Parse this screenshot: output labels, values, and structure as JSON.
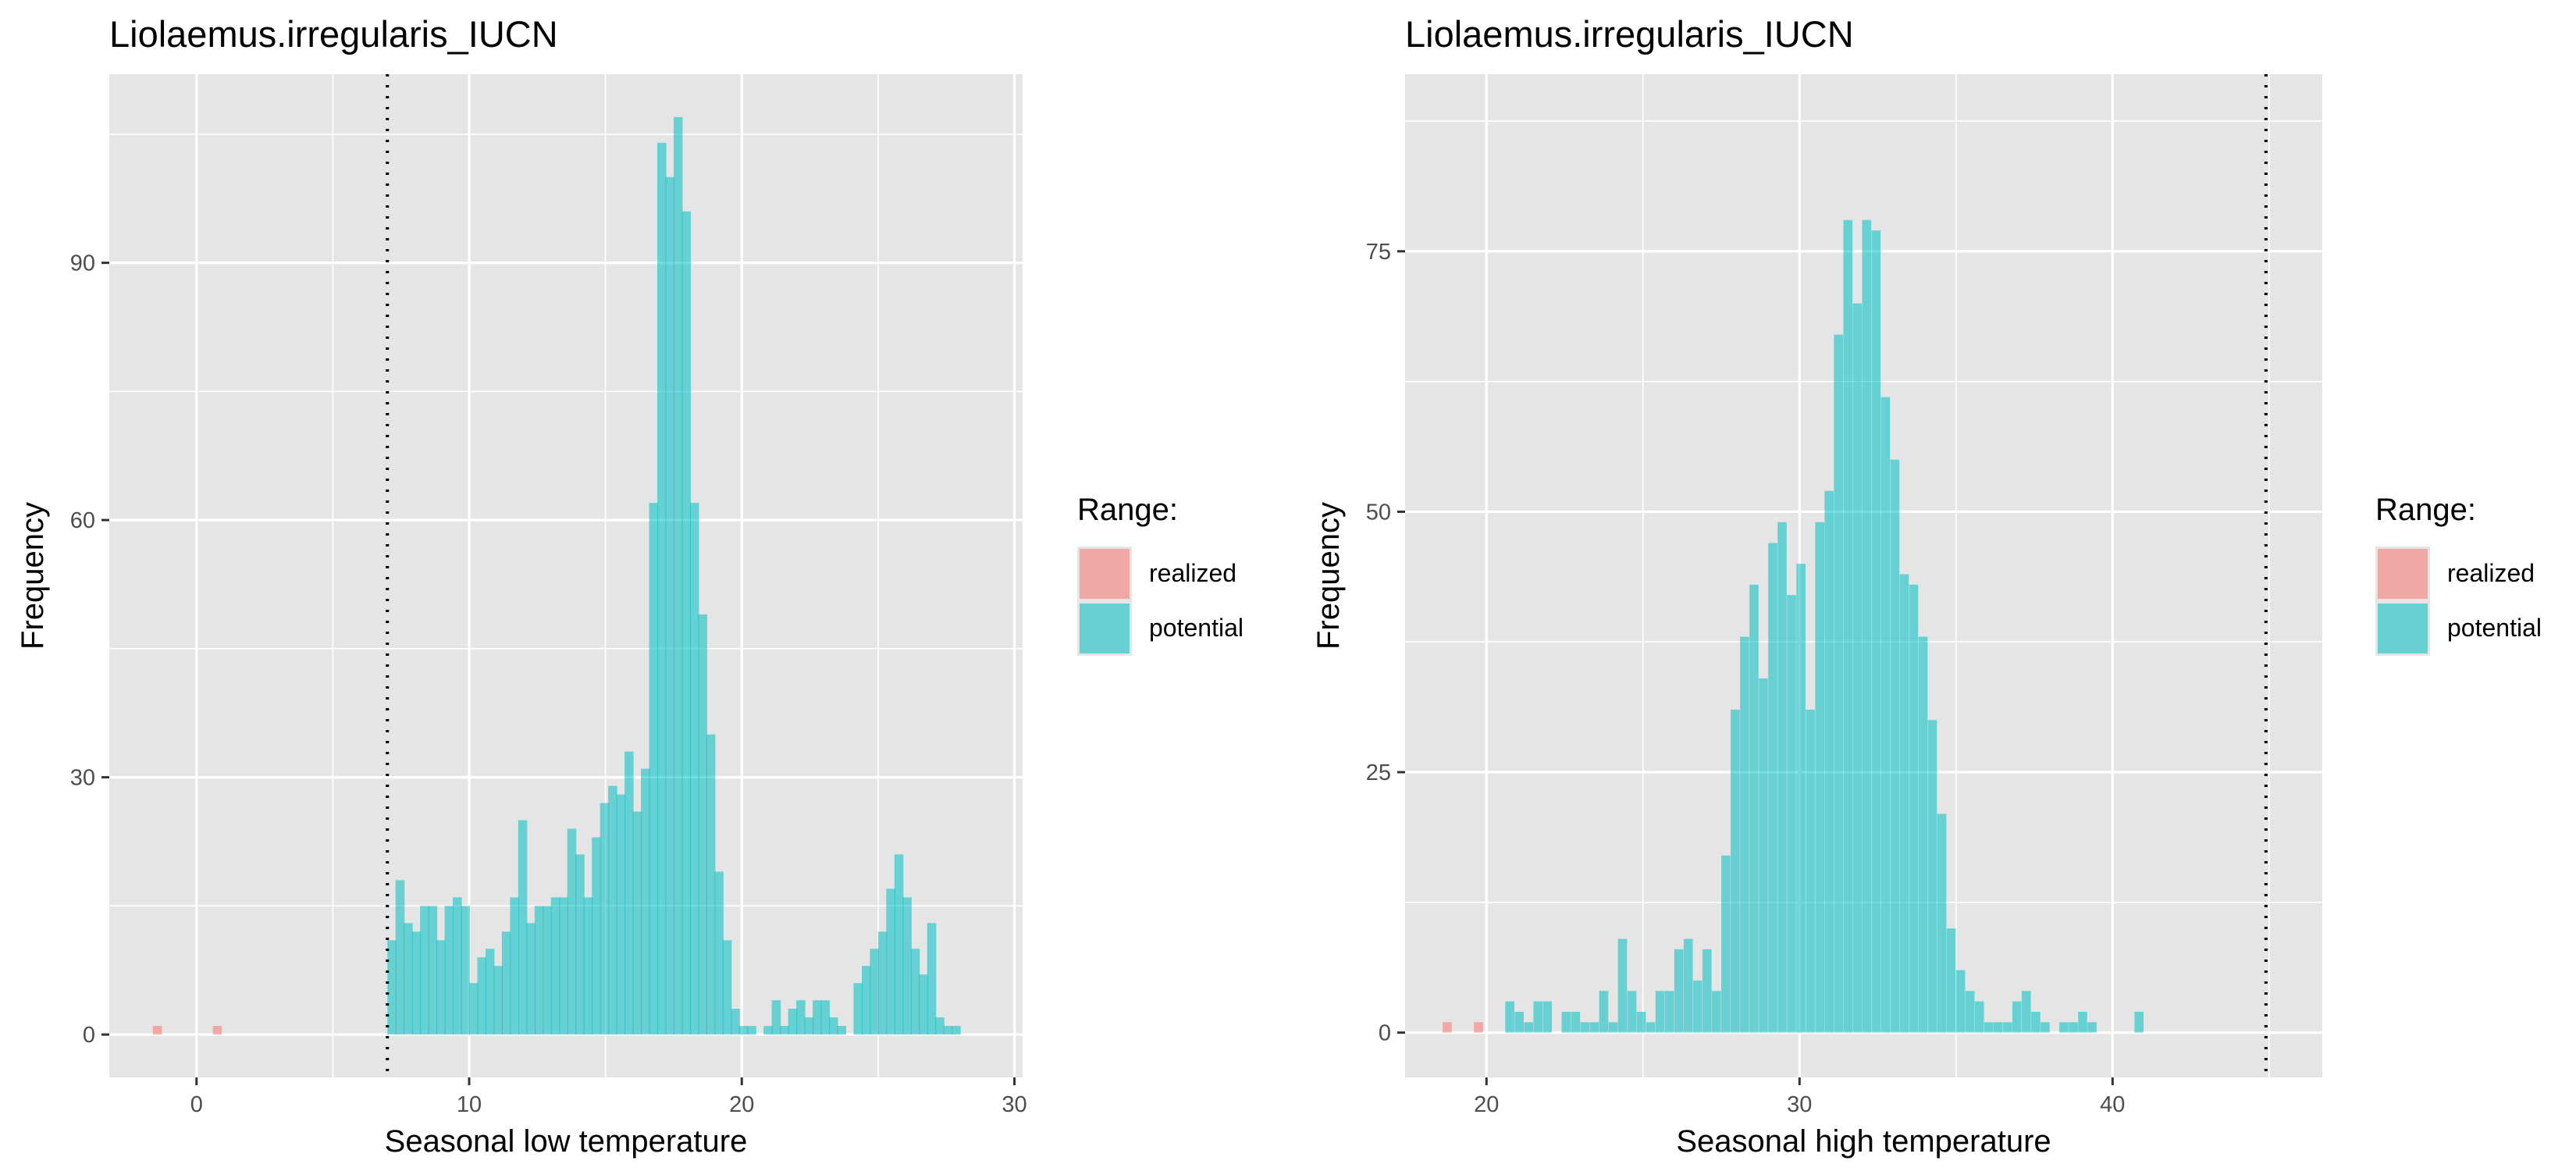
{
  "colors": {
    "panel_bg": "#e5e5e5",
    "grid_major": "#ffffff",
    "realized": "#f8766d",
    "potential": "#00bfc4",
    "bar_alpha": 0.55,
    "text": "#000000",
    "tick_text": "#4d4d4d"
  },
  "chart_data": [
    {
      "type": "bar",
      "title": "Liolaemus.irregularis_IUCN",
      "xlabel": "Seasonal low temperature",
      "ylabel": "Frequency",
      "xlim": [
        -3.2,
        30.3
      ],
      "ylim": [
        -5,
        112
      ],
      "xticks": [
        0,
        10,
        20,
        30
      ],
      "yticks": [
        0,
        30,
        60,
        90
      ],
      "xtick_labels": [
        "0",
        "10",
        "20",
        "30"
      ],
      "ytick_labels": [
        "0",
        "30",
        "60",
        "90"
      ],
      "vline": 7.0,
      "vline_style": "dotted",
      "legend_position": "right",
      "legend": {
        "title": "Range:",
        "entries": [
          "realized",
          "potential"
        ]
      },
      "bin_width": 0.33,
      "series": [
        {
          "name": "realized",
          "x": [
            -1.6,
            0.6
          ],
          "values": [
            1,
            1
          ]
        },
        {
          "name": "potential",
          "x": [
            7.0,
            7.3,
            7.6,
            7.9,
            8.2,
            8.5,
            8.8,
            9.1,
            9.4,
            9.7,
            10.0,
            10.3,
            10.6,
            10.9,
            11.2,
            11.5,
            11.8,
            12.1,
            12.4,
            12.7,
            13.0,
            13.3,
            13.6,
            13.9,
            14.2,
            14.5,
            14.8,
            15.1,
            15.4,
            15.7,
            16.0,
            16.3,
            16.6,
            16.9,
            17.2,
            17.5,
            17.8,
            18.1,
            18.4,
            18.7,
            19.0,
            19.3,
            19.6,
            19.9,
            20.2,
            20.5,
            20.8,
            21.1,
            21.4,
            21.7,
            22.0,
            22.3,
            22.6,
            22.9,
            23.2,
            23.5,
            23.8,
            24.1,
            24.4,
            24.7,
            25.0,
            25.3,
            25.6,
            25.9,
            26.2,
            26.5,
            26.8,
            27.1,
            27.4,
            27.7,
            28.0,
            28.3
          ],
          "values": [
            11,
            18,
            13,
            12,
            15,
            15,
            11,
            15,
            16,
            15,
            6,
            9,
            10,
            8,
            12,
            16,
            25,
            13,
            15,
            15,
            16,
            16,
            24,
            21,
            16,
            23,
            27,
            29,
            28,
            33,
            26,
            31,
            62,
            104,
            100,
            107,
            96,
            62,
            49,
            35,
            19,
            11,
            3,
            1,
            1,
            0,
            1,
            4,
            1,
            3,
            4,
            2,
            4,
            4,
            2,
            1,
            0,
            6,
            8,
            10,
            12,
            17,
            21,
            16,
            10,
            7,
            13,
            2,
            1,
            1,
            0,
            0
          ]
        }
      ]
    },
    {
      "type": "bar",
      "title": "Liolaemus.irregularis_IUCN",
      "xlabel": "Seasonal high temperature",
      "ylabel": "Frequency",
      "xlim": [
        17.4,
        46.7
      ],
      "ylim": [
        -4.3,
        92
      ],
      "xticks": [
        20,
        30,
        40
      ],
      "yticks": [
        0,
        25,
        50,
        75
      ],
      "xtick_labels": [
        "20",
        "30",
        "40"
      ],
      "ytick_labels": [
        "0",
        "25",
        "50",
        "75"
      ],
      "vline": 44.9,
      "vline_style": "dotted",
      "legend_position": "right",
      "legend": {
        "title": "Range:",
        "entries": [
          "realized",
          "potential"
        ]
      },
      "bin_width": 0.29,
      "series": [
        {
          "name": "realized",
          "x": [
            18.6,
            19.6
          ],
          "values": [
            1,
            1
          ]
        },
        {
          "name": "potential",
          "x": [
            20.6,
            20.9,
            21.2,
            21.5,
            21.8,
            22.1,
            22.4,
            22.7,
            23.0,
            23.3,
            23.6,
            23.9,
            24.2,
            24.5,
            24.8,
            25.1,
            25.4,
            25.7,
            26.0,
            26.3,
            26.6,
            26.9,
            27.2,
            27.5,
            27.8,
            28.1,
            28.4,
            28.7,
            29.0,
            29.3,
            29.6,
            29.9,
            30.2,
            30.5,
            30.8,
            31.1,
            31.4,
            31.7,
            32.0,
            32.3,
            32.6,
            32.9,
            33.2,
            33.5,
            33.8,
            34.1,
            34.4,
            34.7,
            35.0,
            35.3,
            35.6,
            35.9,
            36.2,
            36.5,
            36.8,
            37.1,
            37.4,
            37.7,
            38.0,
            38.3,
            38.6,
            38.9,
            39.2,
            39.5,
            39.8,
            40.1,
            40.4,
            40.7,
            41.0,
            41.3
          ],
          "values": [
            3,
            2,
            1,
            3,
            3,
            0,
            2,
            2,
            1,
            1,
            4,
            1,
            9,
            4,
            2,
            1,
            4,
            4,
            8,
            9,
            5,
            8,
            4,
            17,
            31,
            38,
            43,
            34,
            47,
            49,
            42,
            45,
            31,
            49,
            52,
            67,
            78,
            70,
            78,
            77,
            61,
            55,
            44,
            43,
            38,
            30,
            21,
            10,
            6,
            4,
            3,
            1,
            1,
            1,
            3,
            4,
            2,
            1,
            0,
            1,
            1,
            2,
            1,
            0,
            0,
            0,
            0,
            2,
            0,
            0
          ]
        }
      ]
    }
  ]
}
